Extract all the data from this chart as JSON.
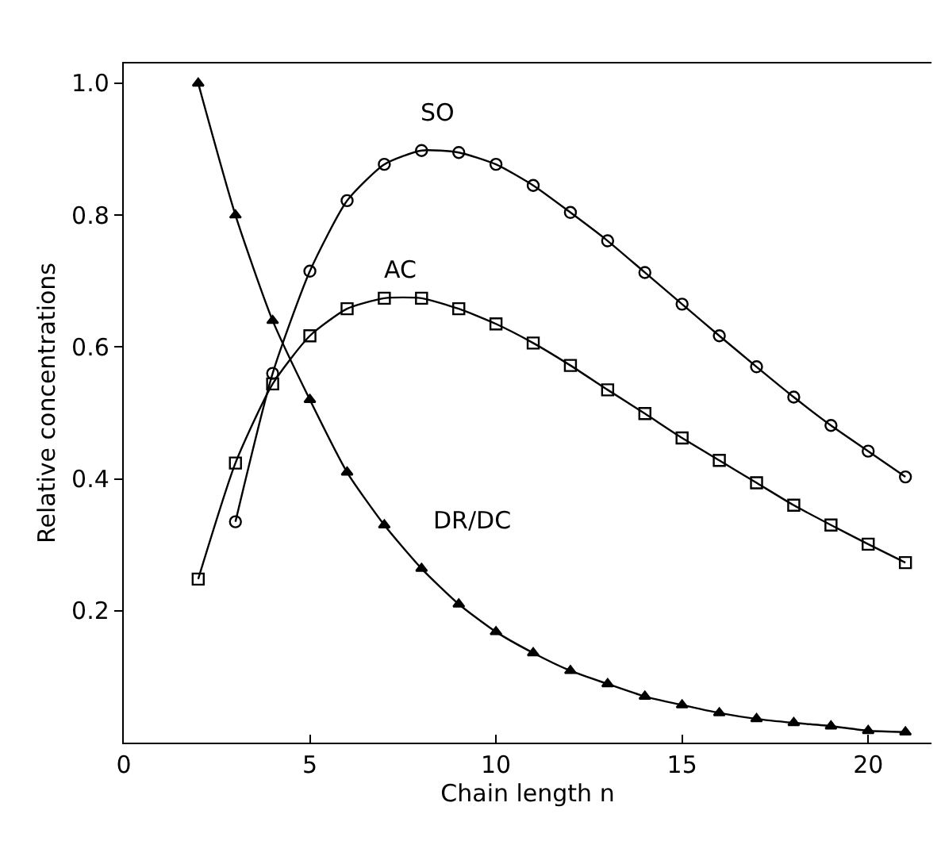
{
  "chart_data": {
    "type": "line",
    "xlabel": "Chain length n",
    "ylabel": "Relative concentrations",
    "xlim": [
      0,
      21.7
    ],
    "xticks": [
      0,
      5,
      10,
      15,
      20
    ],
    "ylim": [
      0,
      1.03
    ],
    "yticks": [
      {
        "value": 0.2,
        "label": "0.2"
      },
      {
        "value": 0.4,
        "label": "0.4"
      },
      {
        "value": 0.6,
        "label": "0.6"
      },
      {
        "value": 0.8,
        "label": "0.8"
      },
      {
        "value": 1.0,
        "label": "1.0"
      }
    ],
    "legend": false,
    "series": [
      {
        "name": "SO",
        "color": "#000000",
        "marker": "circle",
        "x": [
          3,
          4,
          5,
          6,
          7,
          8,
          9,
          10,
          11,
          12,
          13,
          14,
          15,
          16,
          17,
          18,
          19,
          20,
          21
        ],
        "values": [
          0.335,
          0.56,
          0.715,
          0.822,
          0.877,
          0.898,
          0.895,
          0.877,
          0.845,
          0.804,
          0.761,
          0.713,
          0.665,
          0.617,
          0.57,
          0.524,
          0.481,
          0.442,
          0.403
        ]
      },
      {
        "name": "AC",
        "color": "#000000",
        "marker": "square",
        "x": [
          2,
          3,
          4,
          5,
          6,
          7,
          8,
          9,
          10,
          11,
          12,
          13,
          14,
          15,
          16,
          17,
          18,
          19,
          20,
          21
        ],
        "values": [
          0.248,
          0.424,
          0.544,
          0.617,
          0.658,
          0.674,
          0.674,
          0.658,
          0.635,
          0.606,
          0.572,
          0.535,
          0.499,
          0.462,
          0.428,
          0.394,
          0.36,
          0.33,
          0.301,
          0.273
        ]
      },
      {
        "name": "DR/DC",
        "color": "#000000",
        "marker": "triangle",
        "x": [
          2,
          3,
          4,
          5,
          6,
          7,
          8,
          9,
          10,
          11,
          12,
          13,
          14,
          15,
          16,
          17,
          18,
          19,
          20,
          21
        ],
        "values": [
          1.0,
          0.8,
          0.64,
          0.52,
          0.41,
          0.33,
          0.264,
          0.21,
          0.168,
          0.136,
          0.109,
          0.089,
          0.07,
          0.057,
          0.045,
          0.036,
          0.03,
          0.025,
          0.018,
          0.016
        ]
      }
    ]
  }
}
